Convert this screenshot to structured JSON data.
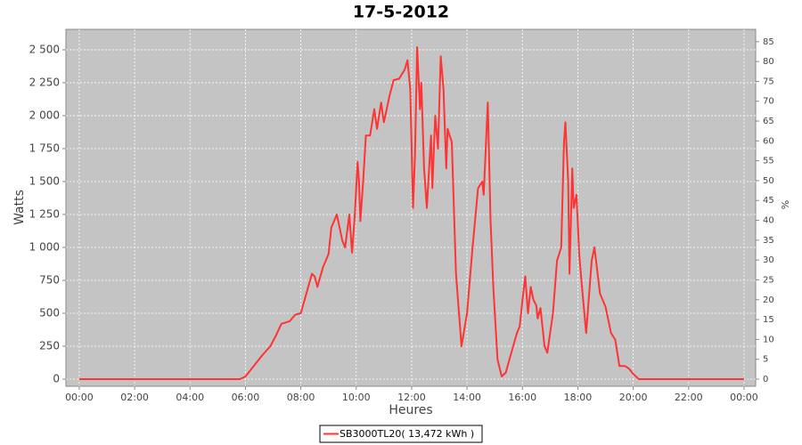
{
  "chart_data": {
    "type": "line",
    "title": "17-5-2012",
    "x_label": "Heures",
    "y_label": "Watts",
    "y2_label": "%",
    "x": [
      0,
      5.8,
      6.0,
      6.3,
      6.6,
      6.9,
      7.1,
      7.3,
      7.6,
      7.8,
      8.0,
      8.2,
      8.4,
      8.5,
      8.6,
      8.8,
      9.0,
      9.1,
      9.3,
      9.4,
      9.5,
      9.6,
      9.75,
      9.85,
      9.95,
      10.05,
      10.1,
      10.15,
      10.25,
      10.35,
      10.5,
      10.65,
      10.75,
      10.9,
      11.0,
      11.1,
      11.2,
      11.35,
      11.55,
      11.75,
      11.85,
      11.95,
      12.05,
      12.12,
      12.2,
      12.3,
      12.35,
      12.45,
      12.55,
      12.7,
      12.75,
      12.85,
      12.95,
      13.05,
      13.15,
      13.25,
      13.3,
      13.45,
      13.6,
      13.8,
      14.0,
      14.2,
      14.4,
      14.55,
      14.6,
      14.75,
      14.85,
      14.95,
      15.1,
      15.25,
      15.4,
      15.6,
      15.8,
      15.9,
      16.0,
      16.1,
      16.2,
      16.3,
      16.4,
      16.5,
      16.55,
      16.65,
      16.8,
      16.9,
      17.1,
      17.25,
      17.4,
      17.5,
      17.55,
      17.65,
      17.7,
      17.8,
      17.85,
      17.95,
      18.05,
      18.15,
      18.3,
      18.5,
      18.6,
      18.8,
      19.0,
      19.2,
      19.35,
      19.5,
      19.7,
      19.85,
      20.0,
      20.2,
      24
    ],
    "series": [
      {
        "name": "SB3000TL20( 13,472 kWh )",
        "color": "#ff3333",
        "values": [
          0,
          0,
          20,
          100,
          180,
          250,
          330,
          420,
          440,
          490,
          500,
          650,
          800,
          780,
          700,
          850,
          950,
          1150,
          1250,
          1150,
          1050,
          1000,
          1250,
          960,
          1250,
          1650,
          1500,
          1200,
          1500,
          1850,
          1850,
          2050,
          1900,
          2100,
          1950,
          2050,
          2150,
          2270,
          2280,
          2350,
          2420,
          2200,
          1300,
          1700,
          2520,
          2050,
          2250,
          1600,
          1300,
          1850,
          1450,
          2000,
          1750,
          2450,
          2200,
          1600,
          1900,
          1800,
          800,
          250,
          500,
          1000,
          1450,
          1500,
          1400,
          2100,
          1200,
          700,
          150,
          20,
          50,
          200,
          350,
          400,
          600,
          780,
          500,
          700,
          600,
          560,
          460,
          540,
          250,
          200,
          500,
          900,
          1000,
          1800,
          1950,
          1500,
          800,
          1600,
          1300,
          1400,
          950,
          700,
          350,
          900,
          1000,
          650,
          550,
          350,
          300,
          100,
          100,
          80,
          40,
          0,
          0
        ]
      }
    ],
    "xlim": [
      -0.48,
      24.42
    ],
    "xticks": [
      {
        "value": 0,
        "label": "00:00"
      },
      {
        "value": 2,
        "label": "02:00"
      },
      {
        "value": 4,
        "label": "04:00"
      },
      {
        "value": 6,
        "label": "06:00"
      },
      {
        "value": 8,
        "label": "08:00"
      },
      {
        "value": 10,
        "label": "10:00"
      },
      {
        "value": 12,
        "label": "12:00"
      },
      {
        "value": 14,
        "label": "14:00"
      },
      {
        "value": 16,
        "label": "16:00"
      },
      {
        "value": 18,
        "label": "18:00"
      },
      {
        "value": 20,
        "label": "20:00"
      },
      {
        "value": 22,
        "label": "22:00"
      },
      {
        "value": 24,
        "label": "00:00"
      }
    ],
    "ylim": [
      -54,
      2655
    ],
    "yticks": [
      0,
      250,
      500,
      750,
      {
        "value": 1000,
        "label": "1 000"
      },
      {
        "value": 1250,
        "label": "1 250"
      },
      {
        "value": 1500,
        "label": "1 500"
      },
      {
        "value": 1750,
        "label": "1 750"
      },
      {
        "value": 2000,
        "label": "2 000"
      },
      {
        "value": 2250,
        "label": "2 250"
      },
      {
        "value": 2500,
        "label": "2 500"
      }
    ],
    "y2lim": [
      -1.8,
      88.1
    ],
    "y2ticks": [
      0,
      5,
      10,
      15,
      20,
      25,
      30,
      35,
      40,
      45,
      50,
      55,
      60,
      65,
      70,
      75,
      80,
      85
    ],
    "grid": true
  }
}
